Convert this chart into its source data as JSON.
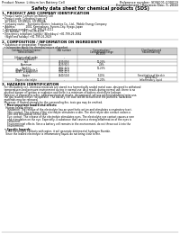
{
  "bg_color": "#ffffff",
  "header_left": "Product Name: Lithium Ion Battery Cell",
  "header_right_line1": "Reference number: SDSJ001-000019",
  "header_right_line2": "Establishment / Revision: Dec. 7, 2010",
  "title": "Safety data sheet for chemical products (SDS)",
  "section1_title": "1. PRODUCT AND COMPANY IDENTIFICATION",
  "section1_lines": [
    " • Product name: Lithium Ion Battery Cell",
    " • Product code: Cylindrical-type cell",
    "    SIY18650, SIY18650L, SIY18650A",
    " • Company name:   Sumitomo Electric Industries Co., Ltd.,  Mobile Energy Company",
    " • Address:             2001, Kaminakano, Sunono-City, Hyogo, Japan",
    " • Telephone number:   +81-799-26-4111",
    " • Fax number:  +81-799-26-4129",
    " • Emergency telephone number (Weekdays) +81-799-26-2662",
    "    (Night and holiday) +81-799-26-2629"
  ],
  "section2_title": "2. COMPOSITION / INFORMATION ON INGREDIENTS",
  "section2_sub1": " • Substance or preparation: Preparation",
  "section2_sub2": "   • Information about the chemical nature of product",
  "table_col_headers": [
    "Common chemical name /\nGeneral name",
    "CAS number",
    "Concentration /\nConcentration range\n(90-95%)",
    "Classification and\nhazard labeling"
  ],
  "table_rows": [
    [
      "Lithium cobalt oxide\n(LiMnxCoyNizO2)",
      "-",
      "",
      ""
    ],
    [
      "Iron",
      "7439-89-6",
      "10-25%",
      ""
    ],
    [
      "Aluminum",
      "7429-90-5",
      "2-8%",
      ""
    ],
    [
      "Graphite\n(Made in graphite-1\n(A/B/C as graphite))",
      "7782-42-5\n7782-42-5\n7782-42-5",
      "10-25%",
      ""
    ],
    [
      "Copper",
      "7440-50-8",
      "5-10%",
      "Sensitization of the skin\ngroup No.2"
    ],
    [
      "Organic electrolyte",
      "-",
      "10-20%",
      "Inflammatory liquid"
    ]
  ],
  "section3_title": "3. HAZARDS IDENTIFICATION",
  "section3_body": [
    "   For this battery cell, chemical materials are stored in a hermetically sealed metal case, designed to withstand",
    "   temperatures and pressure environment during in normal use. As a result, during normal use, there is no",
    "   physical danger of ignition or explosion and there is a minimum of battery electrolyte leakage.",
    "   However, if exposed to a fire, added mechanical shocks, decomposed, serious external abnormal miss-use,",
    "   the gas related contact (to operate). The battery cell case will be breached of the particles, hazardous",
    "   materials may be released.",
    "   Moreover, if heated strongly by the surrounding fire, toxic gas may be emitted."
  ],
  "bullet_hazard": "   • Most important hazard and effects:",
  "hazard_lines": [
    "     Human health effects:",
    "       Inhalation: The release of the electrolyte has an anesthetic action and stimulates a respiratory tract.",
    "       Skin contact: The release of the electrolyte stimulates a skin. The electrolyte skin contact causes a",
    "       sore and stimulation on the skin.",
    "       Eye contact: The release of the electrolyte stimulates eyes. The electrolyte eye contact causes a sore",
    "       and stimulation on the eye. Especially, a substance that causes a strong inflammation of the eyes is",
    "       contained.",
    "       Environmental effects: Since a battery cell remains in the environment, do not throw out it into the",
    "       environment."
  ],
  "bullet_specific": "   • Specific hazards:",
  "specific_lines": [
    "     If the electrolyte contacts with water, it will generate detrimental hydrogen fluoride.",
    "     Since the leaked electrolyte is inflammatory liquid, do not bring close to fire."
  ],
  "text_color": "#000000",
  "table_border_color": "#888888",
  "table_header_bg": "#cccccc",
  "divider_color": "#888888"
}
